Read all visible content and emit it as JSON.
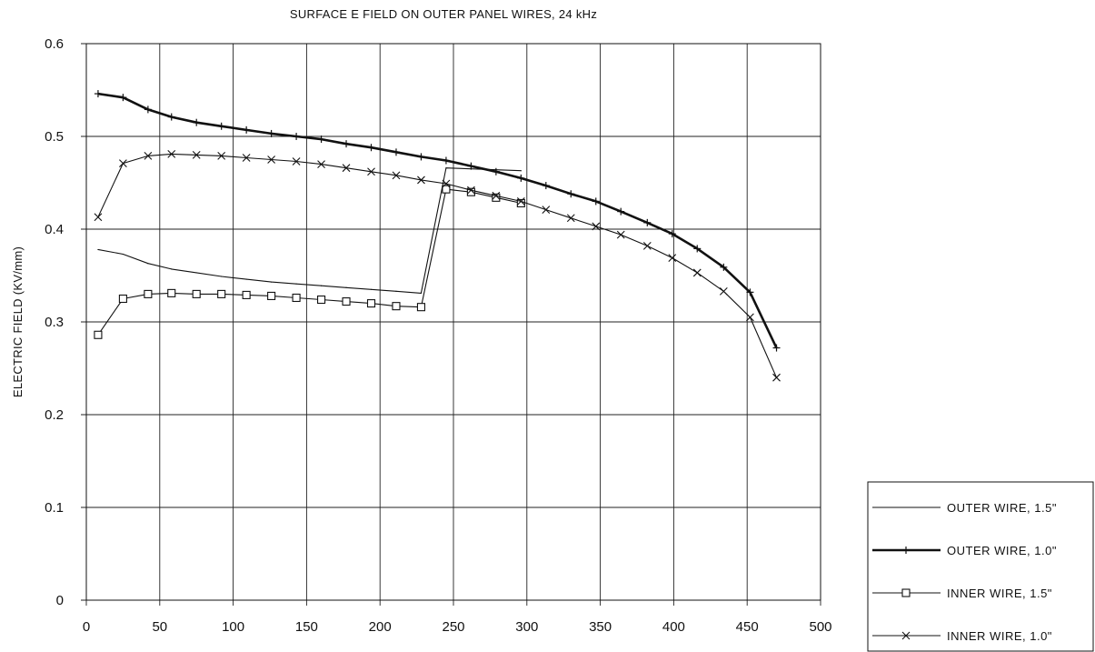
{
  "chart_data": {
    "type": "line",
    "title": "SURFACE E FIELD ON OUTER PANEL WIRES, 24 kHz",
    "xlabel": "",
    "ylabel": "ELECTRIC FIELD (KV/mm)",
    "xlim": [
      0,
      500
    ],
    "ylim": [
      0,
      0.6
    ],
    "x_ticks": [
      "0",
      "50",
      "100",
      "150",
      "200",
      "250",
      "300",
      "350",
      "400",
      "450",
      "500"
    ],
    "y_ticks": [
      "0",
      "0.1",
      "0.2",
      "0.3",
      "0.4",
      "0.5",
      "0.6"
    ],
    "grid": true,
    "legend_position": "bottom-right",
    "series": [
      {
        "name": "OUTER WIRE, 1.5\"",
        "marker": "none",
        "line": "solid-thin",
        "color": "#111111",
        "x": [
          8,
          25,
          42,
          58,
          75,
          92,
          109,
          126,
          143,
          160,
          177,
          194,
          211,
          228,
          245,
          262,
          279,
          296
        ],
        "y": [
          0.378,
          0.373,
          0.363,
          0.357,
          0.353,
          0.349,
          0.346,
          0.343,
          0.341,
          0.339,
          0.337,
          0.335,
          0.333,
          0.331,
          0.466,
          0.465,
          0.464,
          0.463
        ]
      },
      {
        "name": "OUTER WIRE, 1.0\"",
        "marker": "plus",
        "line": "solid-thick",
        "color": "#111111",
        "x": [
          8,
          25,
          42,
          58,
          75,
          92,
          109,
          126,
          143,
          160,
          177,
          194,
          211,
          228,
          245,
          262,
          279,
          296,
          313,
          330,
          347,
          364,
          382,
          399,
          416,
          434,
          452,
          470
        ],
        "y": [
          0.546,
          0.542,
          0.529,
          0.521,
          0.515,
          0.511,
          0.507,
          0.503,
          0.5,
          0.497,
          0.492,
          0.488,
          0.483,
          0.478,
          0.474,
          0.468,
          0.462,
          0.455,
          0.447,
          0.438,
          0.43,
          0.419,
          0.407,
          0.395,
          0.379,
          0.359,
          0.332,
          0.272
        ]
      },
      {
        "name": "INNER WIRE, 1.5\"",
        "marker": "square",
        "line": "solid-thin",
        "color": "#111111",
        "x": [
          8,
          25,
          42,
          58,
          75,
          92,
          109,
          126,
          143,
          160,
          177,
          194,
          211,
          228,
          245,
          262,
          279,
          296
        ],
        "y": [
          0.286,
          0.325,
          0.33,
          0.331,
          0.33,
          0.33,
          0.329,
          0.328,
          0.326,
          0.324,
          0.322,
          0.32,
          0.317,
          0.316,
          0.443,
          0.44,
          0.434,
          0.428
        ]
      },
      {
        "name": "INNER WIRE, 1.0\"",
        "marker": "x",
        "line": "solid-thin",
        "color": "#111111",
        "x": [
          8,
          25,
          42,
          58,
          75,
          92,
          109,
          126,
          143,
          160,
          177,
          194,
          211,
          228,
          245,
          262,
          279,
          296,
          313,
          330,
          347,
          364,
          382,
          399,
          416,
          434,
          452,
          470
        ],
        "y": [
          0.413,
          0.471,
          0.479,
          0.481,
          0.48,
          0.479,
          0.477,
          0.475,
          0.473,
          0.47,
          0.466,
          0.462,
          0.458,
          0.453,
          0.449,
          0.442,
          0.436,
          0.43,
          0.421,
          0.412,
          0.403,
          0.394,
          0.382,
          0.369,
          0.353,
          0.333,
          0.305,
          0.24
        ]
      }
    ]
  }
}
